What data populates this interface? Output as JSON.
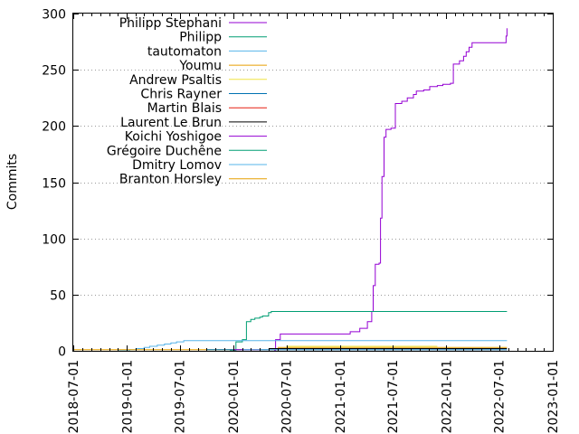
{
  "chart_data": {
    "type": "line",
    "title": "",
    "xlabel": "",
    "ylabel": "Commits",
    "x_axis": "date",
    "xlim": [
      "2018-07-01",
      "2023-01-01"
    ],
    "ylim": [
      0,
      300
    ],
    "x_ticks": [
      "2018-07-01",
      "2019-01-01",
      "2019-07-01",
      "2020-01-01",
      "2020-07-01",
      "2021-01-01",
      "2021-07-01",
      "2022-01-01",
      "2022-07-01",
      "2023-01-01"
    ],
    "y_ticks": [
      0,
      50,
      100,
      150,
      200,
      250,
      300
    ],
    "grid": "horizontal dotted",
    "legend_position": "top-left",
    "step": true,
    "series": [
      {
        "name": "Philipp Stephani",
        "color": "#9400d3",
        "points": [
          [
            "2020-05-20",
            0
          ],
          [
            "2020-05-25",
            10
          ],
          [
            "2020-06-10",
            15
          ],
          [
            "2020-08-01",
            15
          ],
          [
            "2021-01-10",
            15
          ],
          [
            "2021-02-05",
            17
          ],
          [
            "2021-03-10",
            20
          ],
          [
            "2021-04-05",
            26
          ],
          [
            "2021-04-20",
            35
          ],
          [
            "2021-04-25",
            58
          ],
          [
            "2021-05-02",
            77
          ],
          [
            "2021-05-15",
            78
          ],
          [
            "2021-05-20",
            118
          ],
          [
            "2021-05-25",
            155
          ],
          [
            "2021-06-01",
            190
          ],
          [
            "2021-06-08",
            197
          ],
          [
            "2021-06-25",
            198
          ],
          [
            "2021-07-10",
            220
          ],
          [
            "2021-08-01",
            222
          ],
          [
            "2021-08-20",
            225
          ],
          [
            "2021-09-10",
            228
          ],
          [
            "2021-09-20",
            231
          ],
          [
            "2021-10-15",
            232
          ],
          [
            "2021-11-05",
            235
          ],
          [
            "2021-12-01",
            236
          ],
          [
            "2021-12-20",
            237
          ],
          [
            "2022-01-15",
            238
          ],
          [
            "2022-01-25",
            255
          ],
          [
            "2022-02-15",
            258
          ],
          [
            "2022-03-01",
            262
          ],
          [
            "2022-03-10",
            266
          ],
          [
            "2022-03-20",
            270
          ],
          [
            "2022-03-30",
            274
          ],
          [
            "2022-07-20",
            274
          ],
          [
            "2022-07-25",
            280
          ],
          [
            "2022-07-28",
            287
          ]
        ]
      },
      {
        "name": "Philipp",
        "color": "#009e73",
        "points": [
          [
            "2019-12-20",
            0
          ],
          [
            "2020-01-10",
            8
          ],
          [
            "2020-02-01",
            10
          ],
          [
            "2020-02-15",
            26
          ],
          [
            "2020-03-01",
            28
          ],
          [
            "2020-03-15",
            29
          ],
          [
            "2020-04-01",
            30
          ],
          [
            "2020-04-10",
            31
          ],
          [
            "2020-05-01",
            34
          ],
          [
            "2020-05-10",
            35
          ],
          [
            "2022-07-28",
            35
          ]
        ]
      },
      {
        "name": "tautomaton",
        "color": "#56b4e9",
        "points": [
          [
            "2018-12-01",
            0
          ],
          [
            "2019-01-10",
            1
          ],
          [
            "2019-02-01",
            2
          ],
          [
            "2019-03-01",
            3
          ],
          [
            "2019-03-20",
            4
          ],
          [
            "2019-04-15",
            5
          ],
          [
            "2019-05-10",
            6
          ],
          [
            "2019-06-01",
            7
          ],
          [
            "2019-06-20",
            8
          ],
          [
            "2019-07-15",
            9
          ],
          [
            "2022-07-28",
            9
          ]
        ]
      },
      {
        "name": "Youmu",
        "color": "#e69f00",
        "points": [
          [
            "2018-07-01",
            1
          ],
          [
            "2022-07-28",
            1
          ]
        ]
      },
      {
        "name": "Andrew Psaltis",
        "color": "#f0e442",
        "points": [
          [
            "2020-07-01",
            4
          ],
          [
            "2021-12-01",
            4
          ]
        ]
      },
      {
        "name": "Chris Rayner",
        "color": "#0072b2",
        "points": [
          [
            "2019-10-01",
            1
          ],
          [
            "2022-07-28",
            1
          ]
        ]
      },
      {
        "name": "Martin Blais",
        "color": "#e51e10",
        "points": [
          [
            "2020-03-01",
            1
          ],
          [
            "2022-07-28",
            1
          ]
        ]
      },
      {
        "name": "Laurent Le Brun",
        "color": "#000000",
        "points": [
          [
            "2020-05-01",
            2
          ],
          [
            "2022-07-28",
            2
          ]
        ]
      },
      {
        "name": "Koichi Yoshigoe",
        "color": "#9400d3",
        "points": [
          [
            "2020-01-01",
            1
          ],
          [
            "2022-07-28",
            1
          ]
        ]
      },
      {
        "name": "Grégoire Duchêne",
        "color": "#009e73",
        "points": [
          [
            "2020-04-01",
            1
          ],
          [
            "2022-07-28",
            1
          ]
        ]
      },
      {
        "name": "Dmitry Lomov",
        "color": "#56b4e9",
        "points": [
          [
            "2020-02-01",
            1
          ],
          [
            "2022-07-28",
            1
          ]
        ]
      },
      {
        "name": "Branton Horsley",
        "color": "#e69f00",
        "points": [
          [
            "2020-06-01",
            3
          ],
          [
            "2022-07-28",
            3
          ]
        ]
      }
    ]
  }
}
